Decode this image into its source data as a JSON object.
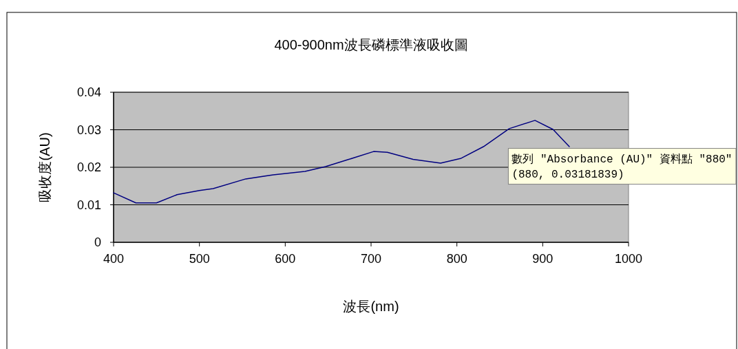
{
  "chart_data": {
    "type": "line",
    "title": "400-900nm波長磷標準液吸收圖",
    "xlabel": "波長(nm)",
    "ylabel": "吸收度(AU)",
    "x": [
      400,
      426,
      450,
      474,
      500,
      516,
      554,
      586,
      623,
      647,
      674,
      703,
      719,
      749,
      781,
      805,
      831,
      861,
      891,
      912,
      931
    ],
    "series": [
      {
        "color": "#000080",
        "values": [
          0.0132,
          0.0105,
          0.0105,
          0.0127,
          0.0138,
          0.0143,
          0.0169,
          0.018,
          0.0189,
          0.0202,
          0.0221,
          0.0242,
          0.024,
          0.0221,
          0.0211,
          0.0224,
          0.0255,
          0.0303,
          0.0325,
          0.0301,
          0.0255
        ]
      }
    ],
    "xlim": [
      400,
      1000
    ],
    "xticks": [
      400,
      500,
      600,
      700,
      800,
      900,
      1000
    ],
    "ylim": [
      0,
      0.04
    ],
    "yticks": [
      0,
      0.01,
      0.02,
      0.03,
      0.04
    ],
    "grid": "y",
    "marker": "none",
    "line_style": "solid",
    "annotations": [
      {
        "text": "數列 \"Absorbance (AU)\" 資料點 \"880\"\n(880, 0.03181839)",
        "x": 880,
        "y": 0.03181839
      }
    ]
  }
}
